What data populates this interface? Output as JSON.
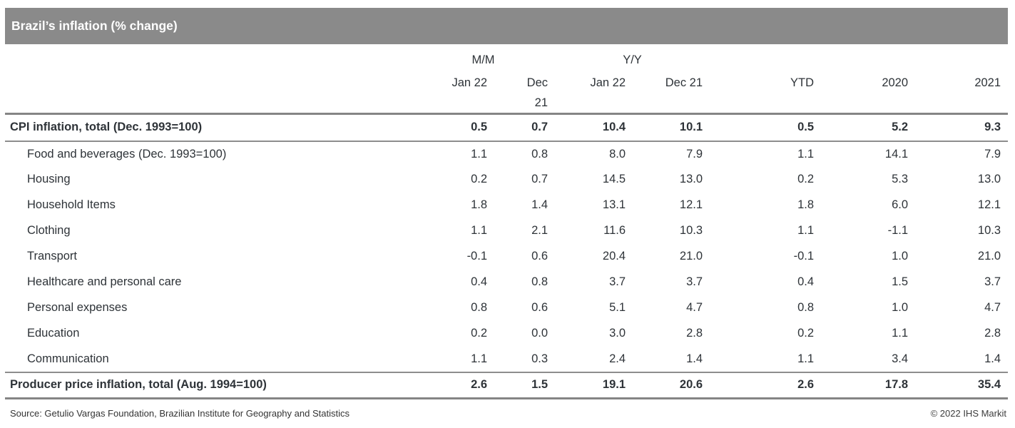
{
  "title": "Brazil’s inflation (% change)",
  "chart_data": {
    "type": "table",
    "title": "Brazil’s inflation (% change)",
    "column_groups": [
      {
        "label": "M/M",
        "span": 2
      },
      {
        "label": "Y/Y",
        "span": 2
      }
    ],
    "columns": [
      "Jan 22",
      "Dec 21",
      "Jan 22",
      "Dec 21",
      "YTD",
      "2020",
      "2021"
    ],
    "rows": [
      {
        "label": "CPI inflation, total (Dec. 1993=100)",
        "emphasis": "total",
        "values": [
          0.5,
          0.7,
          10.4,
          10.1,
          0.5,
          5.2,
          9.3
        ]
      },
      {
        "label": "Food and beverages (Dec. 1993=100)",
        "emphasis": "sub",
        "values": [
          1.1,
          0.8,
          8.0,
          7.9,
          1.1,
          14.1,
          7.9
        ]
      },
      {
        "label": "Housing",
        "emphasis": "sub",
        "values": [
          0.2,
          0.7,
          14.5,
          13.0,
          0.2,
          5.3,
          13.0
        ]
      },
      {
        "label": "Household Items",
        "emphasis": "sub",
        "values": [
          1.8,
          1.4,
          13.1,
          12.1,
          1.8,
          6.0,
          12.1
        ]
      },
      {
        "label": "Clothing",
        "emphasis": "sub",
        "values": [
          1.1,
          2.1,
          11.6,
          10.3,
          1.1,
          -1.1,
          10.3
        ]
      },
      {
        "label": "Transport",
        "emphasis": "sub",
        "values": [
          -0.1,
          0.6,
          20.4,
          21.0,
          -0.1,
          1.0,
          21.0
        ]
      },
      {
        "label": "Healthcare and personal care",
        "emphasis": "sub",
        "values": [
          0.4,
          0.8,
          3.7,
          3.7,
          0.4,
          1.5,
          3.7
        ]
      },
      {
        "label": "Personal expenses",
        "emphasis": "sub",
        "values": [
          0.8,
          0.6,
          5.1,
          4.7,
          0.8,
          1.0,
          4.7
        ]
      },
      {
        "label": "Education",
        "emphasis": "sub",
        "values": [
          0.2,
          0.0,
          3.0,
          2.8,
          0.2,
          1.1,
          2.8
        ]
      },
      {
        "label": "Communication",
        "emphasis": "sub",
        "values": [
          1.1,
          0.3,
          2.4,
          1.4,
          1.1,
          3.4,
          1.4
        ]
      },
      {
        "label": "Producer price inflation, total (Aug. 1994=100)",
        "emphasis": "total",
        "values": [
          2.6,
          1.5,
          19.1,
          20.6,
          2.6,
          17.8,
          35.4
        ]
      }
    ],
    "value_format": "one_decimal",
    "layout": {
      "numeric_alignment": "right",
      "gridlines": "horizontal rules only"
    }
  },
  "footer": {
    "source": "Source: Getulio Vargas Foundation, Brazilian Institute for Geography and Statistics",
    "copyright": "© 2022 IHS Markit"
  },
  "colors": {
    "title_bar_background": "#8a8a8a",
    "title_text": "#ffffff",
    "rule_gray": "#858585",
    "body_text": "#2e3338"
  }
}
